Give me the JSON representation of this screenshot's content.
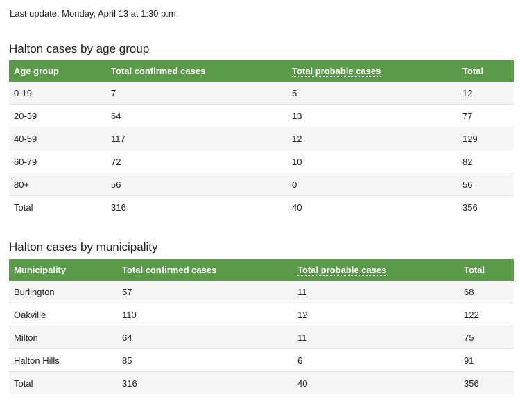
{
  "last_update": {
    "label": "Last update:",
    "value": " Monday, April 13 at 1:30 p.m."
  },
  "age_table": {
    "title": "Halton cases by age group",
    "headers": [
      "Age group",
      "Total confirmed cases",
      "Total probable cases",
      "Total"
    ],
    "rows": [
      [
        "0-19",
        "7",
        "5",
        "12"
      ],
      [
        "20-39",
        "64",
        "13",
        "77"
      ],
      [
        "40-59",
        "117",
        "12",
        "129"
      ],
      [
        "60-79",
        "72",
        "10",
        "82"
      ],
      [
        "80+",
        "56",
        "0",
        "56"
      ],
      [
        "Total",
        "316",
        "40",
        "356"
      ]
    ]
  },
  "municipality_table": {
    "title": "Halton cases by municipality",
    "headers": [
      "Municipality",
      "Total confirmed cases",
      "Total probable cases",
      "Total"
    ],
    "rows": [
      [
        "Burlington",
        "57",
        "11",
        "68"
      ],
      [
        "Oakville",
        "110",
        "12",
        "122"
      ],
      [
        "Milton",
        "64",
        "11",
        "75"
      ],
      [
        "Halton Hills",
        "85",
        "6",
        "91"
      ],
      [
        "Total",
        "316",
        "40",
        "356"
      ]
    ]
  },
  "colors": {
    "header_bg": "#5a9a48",
    "header_text": "#ffffff",
    "row_alt_bg": "#f6f6f6"
  }
}
